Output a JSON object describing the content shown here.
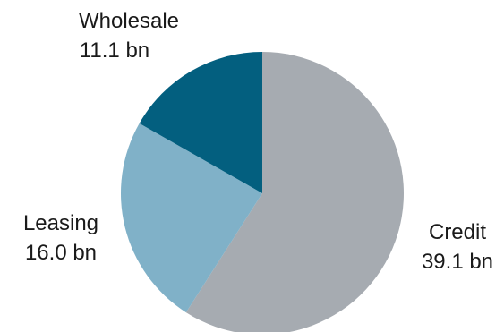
{
  "chart_data": {
    "type": "pie",
    "title": "",
    "unit": "bn",
    "start_angle_deg": 0,
    "direction": "clockwise",
    "slices": [
      {
        "name": "Credit",
        "value": 39.1,
        "value_label": "39.1 bn",
        "color": "#a6abb1"
      },
      {
        "name": "Leasing",
        "value": 16.0,
        "value_label": "16.0 bn",
        "color": "#80b1c8"
      },
      {
        "name": "Wholesale",
        "value": 11.1,
        "value_label": "11.1 bn",
        "color": "#035f7f"
      }
    ]
  }
}
